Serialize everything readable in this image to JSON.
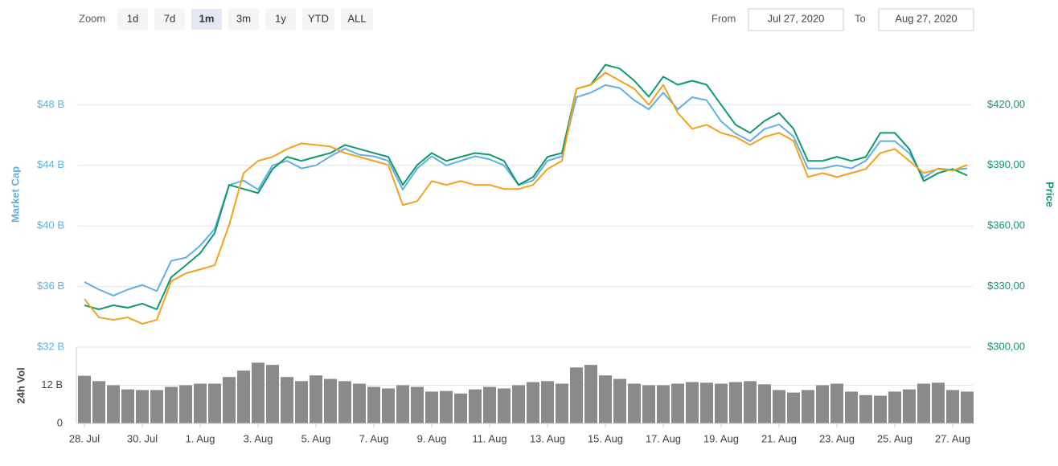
{
  "controls": {
    "zoom_label": "Zoom",
    "zoom_options": [
      "1d",
      "7d",
      "1m",
      "3m",
      "1y",
      "YTD",
      "ALL"
    ],
    "zoom_selected": 2,
    "from_label": "From",
    "from_value": "Jul 27, 2020",
    "to_label": "To",
    "to_value": "Aug 27, 2020"
  },
  "chart_data": [
    {
      "type": "line",
      "ylabel": "Market Cap",
      "y2label": "Price",
      "ylim": [
        32,
        52
      ],
      "yticks": [
        {
          "value": 32,
          "label": "$32 B"
        },
        {
          "value": 36,
          "label": "$36 B"
        },
        {
          "value": 40,
          "label": "$40 B"
        },
        {
          "value": 44,
          "label": "$44 B"
        },
        {
          "value": 48,
          "label": "$48 B"
        }
      ],
      "y2lim": [
        300,
        450
      ],
      "y2ticks": [
        {
          "value": 300,
          "label": "$300,00"
        },
        {
          "value": 330,
          "label": "$330,00"
        },
        {
          "value": 360,
          "label": "$360,00"
        },
        {
          "value": 390,
          "label": "$390,00"
        },
        {
          "value": 420,
          "label": "$420,00"
        }
      ],
      "grid": true,
      "series": [
        {
          "color": "#5eb0e5",
          "values": [
            36.3,
            35.8,
            35.4,
            35.8,
            36.1,
            35.7,
            37.7,
            37.9,
            38.7,
            39.8,
            42.7,
            43.0,
            42.4,
            44.0,
            44.3,
            43.8,
            44.0,
            44.6,
            45.1,
            44.7,
            44.6,
            44.3,
            42.4,
            43.8,
            44.6,
            44.0,
            44.3,
            44.6,
            44.4,
            44.0,
            42.7,
            43.0,
            44.3,
            44.6,
            48.5,
            48.8,
            49.3,
            49.1,
            48.3,
            47.7,
            48.8,
            47.7,
            48.5,
            48.3,
            46.9,
            46.1,
            45.6,
            46.4,
            46.7,
            45.9,
            43.8,
            43.8,
            44.0,
            43.8,
            44.3,
            45.6,
            45.6,
            44.8,
            43.2,
            43.8,
            43.7,
            43.8
          ]
        },
        {
          "color": "#0e9a6c",
          "axis": "y2",
          "values": [
            320.7,
            318.7,
            320.7,
            319.5,
            321.5,
            318.7,
            334.6,
            340.5,
            346.5,
            356.4,
            380.3,
            378.3,
            376.3,
            388.2,
            394.2,
            392.2,
            394.2,
            396.1,
            400.1,
            398.1,
            396.1,
            394.2,
            380.3,
            390.2,
            396.1,
            392.2,
            394.2,
            396.1,
            395.3,
            392.2,
            380.3,
            384.2,
            394.2,
            396.1,
            427.9,
            429.9,
            439.8,
            437.9,
            431.9,
            424.0,
            433.9,
            429.9,
            431.9,
            429.9,
            420.0,
            410.1,
            406.1,
            412.0,
            416.0,
            408.1,
            392.2,
            392.2,
            394.2,
            392.2,
            394.2,
            406.1,
            406.1,
            398.1,
            382.2,
            386.2,
            388.2,
            385.0
          ]
        },
        {
          "color": "#f5a11c",
          "axis": "y2",
          "values": [
            323.8,
            314.7,
            313.5,
            314.7,
            311.5,
            313.5,
            332.6,
            336.5,
            338.5,
            340.5,
            360.4,
            386.2,
            392.2,
            394.2,
            398.1,
            400.9,
            400.1,
            399.3,
            396.1,
            394.2,
            392.2,
            390.2,
            370.3,
            372.3,
            382.2,
            380.3,
            382.2,
            380.3,
            380.3,
            378.3,
            378.3,
            380.3,
            388.2,
            392.2,
            427.9,
            429.9,
            435.9,
            431.9,
            427.9,
            420.0,
            429.9,
            416.0,
            408.1,
            410.1,
            406.1,
            404.1,
            400.1,
            404.1,
            406.1,
            402.1,
            384.2,
            386.2,
            384.2,
            386.2,
            388.2,
            396.1,
            398.1,
            392.2,
            386.2,
            388.2,
            387.4,
            390.2
          ]
        }
      ]
    },
    {
      "type": "bar",
      "ylabel": "24h Vol",
      "color": "#8a8a8a",
      "categories": [
        "28. Jul",
        null,
        null,
        null,
        "30. Jul",
        null,
        null,
        null,
        "1. Aug",
        null,
        null,
        null,
        "3. Aug",
        null,
        null,
        null,
        "5. Aug",
        null,
        null,
        null,
        "7. Aug",
        null,
        null,
        null,
        "9. Aug",
        null,
        null,
        null,
        "11. Aug",
        null,
        null,
        null,
        "13. Aug",
        null,
        null,
        null,
        "15. Aug",
        null,
        null,
        null,
        "17. Aug",
        null,
        null,
        null,
        "19. Aug",
        null,
        null,
        null,
        "21. Aug",
        null,
        null,
        null,
        "23. Aug",
        null,
        null,
        null,
        "25. Aug",
        null,
        null,
        null,
        "27. Aug",
        null
      ],
      "values": [
        15,
        13.3,
        12,
        10.7,
        10.5,
        10.5,
        11.5,
        12,
        12.5,
        12.5,
        14.6,
        16.6,
        19.1,
        18.4,
        14.6,
        13.3,
        15.1,
        14,
        13.3,
        12.5,
        11.5,
        11,
        12,
        11.5,
        10,
        10.2,
        9.4,
        10.7,
        11.5,
        11,
        12,
        13,
        13.3,
        12.5,
        17.6,
        18.4,
        15.1,
        14,
        12.5,
        12,
        12,
        12.5,
        13,
        12.8,
        12.5,
        13,
        13.3,
        12.3,
        10.5,
        9.7,
        10.5,
        12,
        12.5,
        10,
        8.9,
        8.7,
        10,
        10.7,
        12.5,
        12.8,
        10.5,
        10
      ],
      "ylim": [
        0,
        24
      ],
      "yticks": [
        0,
        {
          "value": 12,
          "label": "12 B"
        }
      ]
    }
  ]
}
